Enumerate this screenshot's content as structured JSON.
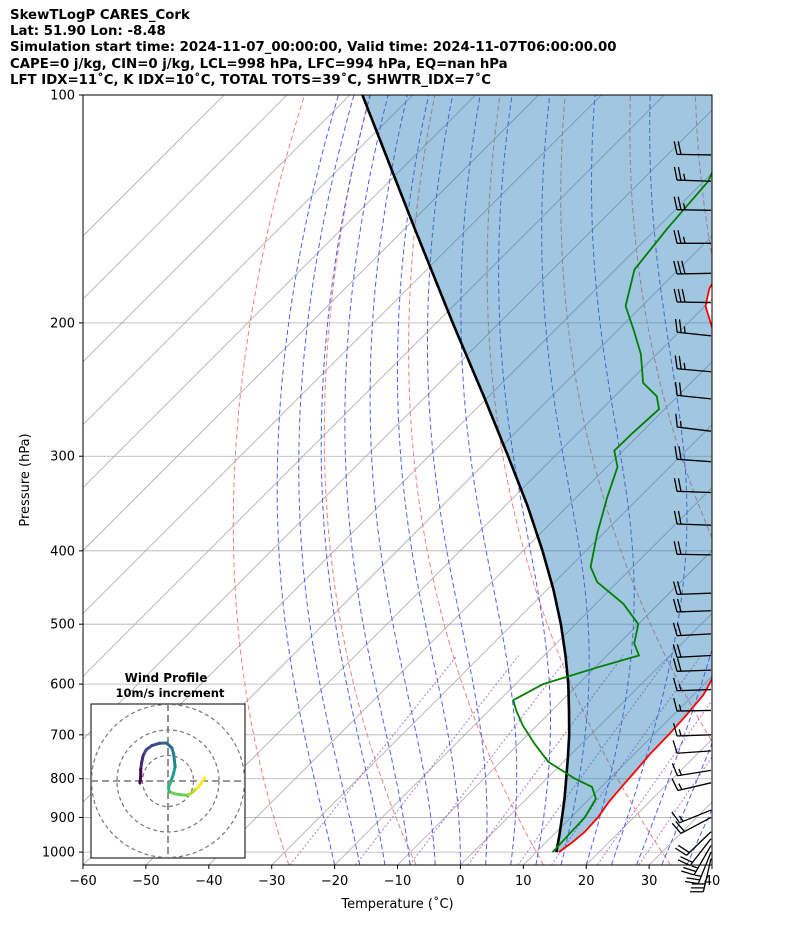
{
  "header": {
    "line1": "SkewTLogP CARES_Cork",
    "line2": "Lat: 51.90   Lon: -8.48",
    "line3": "Simulation start time: 2024-11-07_00:00:00, Valid time: 2024-11-07T06:00:00.00",
    "line4": "CAPE=0 j/kg, CIN=0 j/kg, LCL=998 hPa, LFC=994 hPa, EQ=nan hPa",
    "line5": "LFT IDX=11˚C, K IDX=10˚C, TOTAL TOTS=39˚C, SHWTR_IDX=7˚C"
  },
  "chart_data": {
    "type": "line",
    "xlabel": "Temperature (˚C)",
    "ylabel": "Pressure (hPa)",
    "xlim": [
      -60,
      40
    ],
    "ylim": [
      1040,
      100
    ],
    "y_scale": "log",
    "skew": true,
    "grid": true,
    "x_ticks": [
      "−60",
      "−50",
      "−40",
      "−30",
      "−20",
      "−10",
      "0",
      "10",
      "20",
      "30",
      "40"
    ],
    "x_tick_values": [
      -60,
      -50,
      -40,
      -30,
      -20,
      -10,
      0,
      10,
      20,
      30,
      40
    ],
    "y_ticks": [
      "100",
      "200",
      "300",
      "400",
      "500",
      "600",
      "700",
      "800",
      "900",
      "1000"
    ],
    "y_tick_values": [
      100,
      200,
      300,
      400,
      500,
      600,
      700,
      800,
      900,
      1000
    ],
    "series": [
      {
        "key": "temperature",
        "color": "#ff0000",
        "points": [
          [
            1000,
            13.6
          ],
          [
            970,
            14.2
          ],
          [
            940,
            14.5
          ],
          [
            900,
            14.3
          ],
          [
            860,
            13.6
          ],
          [
            820,
            13.2
          ],
          [
            780,
            12.9
          ],
          [
            740,
            12.5
          ],
          [
            700,
            12.4
          ],
          [
            660,
            12.1
          ],
          [
            620,
            11.6
          ],
          [
            590,
            10.4
          ],
          [
            560,
            7.8
          ],
          [
            530,
            5.3
          ],
          [
            500,
            2.6
          ],
          [
            460,
            -0.9
          ],
          [
            430,
            -3.8
          ],
          [
            400,
            -7.2
          ],
          [
            370,
            -11.4
          ],
          [
            340,
            -16.3
          ],
          [
            310,
            -21.6
          ],
          [
            280,
            -26.7
          ],
          [
            260,
            -30.6
          ],
          [
            240,
            -34.8
          ],
          [
            225,
            -38.4
          ],
          [
            210,
            -43.0
          ],
          [
            200,
            -46.4
          ],
          [
            190,
            -49.9
          ],
          [
            180,
            -52.1
          ],
          [
            170,
            -53.1
          ],
          [
            160,
            -52.9
          ],
          [
            150,
            -52.1
          ],
          [
            140,
            -51.7
          ],
          [
            130,
            -50.2
          ],
          [
            120,
            -47.7
          ],
          [
            110,
            -45.3
          ],
          [
            100,
            -42.7
          ]
        ]
      },
      {
        "key": "dewpoint",
        "color": "#008000",
        "points": [
          [
            1000,
            12.6
          ],
          [
            950,
            12.4
          ],
          [
            900,
            12.2
          ],
          [
            850,
            11.0
          ],
          [
            820,
            8.5
          ],
          [
            800,
            4.5
          ],
          [
            760,
            -2.4
          ],
          [
            720,
            -7.4
          ],
          [
            680,
            -12.3
          ],
          [
            650,
            -15.7
          ],
          [
            630,
            -17.8
          ],
          [
            600,
            -15.6
          ],
          [
            570,
            -9.6
          ],
          [
            550,
            -4.9
          ],
          [
            530,
            -7.6
          ],
          [
            500,
            -10.0
          ],
          [
            470,
            -15.6
          ],
          [
            440,
            -23.2
          ],
          [
            420,
            -26.7
          ],
          [
            380,
            -30.9
          ],
          [
            340,
            -35.1
          ],
          [
            310,
            -38.3
          ],
          [
            295,
            -41.4
          ],
          [
            280,
            -41.3
          ],
          [
            260,
            -40.9
          ],
          [
            250,
            -43.3
          ],
          [
            240,
            -47.6
          ],
          [
            220,
            -52.5
          ],
          [
            205,
            -57.3
          ],
          [
            190,
            -62.6
          ],
          [
            170,
            -67.0
          ],
          [
            150,
            -68.3
          ],
          [
            130,
            -69.3
          ],
          [
            115,
            -72.9
          ],
          [
            100,
            -76.4
          ]
        ]
      },
      {
        "key": "parcel",
        "color": "#000000",
        "points": [
          [
            1000,
            13.2
          ],
          [
            950,
            11.0
          ],
          [
            900,
            8.6
          ],
          [
            850,
            6.0
          ],
          [
            800,
            3.1
          ],
          [
            750,
            0.0
          ],
          [
            700,
            -3.4
          ],
          [
            650,
            -7.3
          ],
          [
            600,
            -11.6
          ],
          [
            550,
            -16.6
          ],
          [
            500,
            -22.3
          ],
          [
            450,
            -29.0
          ],
          [
            400,
            -36.9
          ],
          [
            350,
            -46.2
          ],
          [
            300,
            -57.4
          ],
          [
            250,
            -70.8
          ],
          [
            200,
            -87.4
          ],
          [
            150,
            -108.5
          ],
          [
            100,
            -138.0
          ]
        ]
      }
    ],
    "wind_barbs": [
      {
        "p": 1020,
        "speed": 28.9,
        "dir": 193
      },
      {
        "p": 1000,
        "speed": 26.8,
        "dir": 202
      },
      {
        "p": 980,
        "speed": 24.5,
        "dir": 210
      },
      {
        "p": 960,
        "speed": 21.8,
        "dir": 218
      },
      {
        "p": 940,
        "speed": 19.4,
        "dir": 226
      },
      {
        "p": 900,
        "speed": 18.2,
        "dir": 242
      },
      {
        "p": 880,
        "speed": 17.1,
        "dir": 248
      },
      {
        "p": 810,
        "speed": 13.7,
        "dir": 257
      },
      {
        "p": 780,
        "speed": 13.0,
        "dir": 261
      },
      {
        "p": 735,
        "speed": 12.1,
        "dir": 266
      },
      {
        "p": 700,
        "speed": 12.6,
        "dir": 268
      },
      {
        "p": 650,
        "speed": 14.4,
        "dir": 269
      },
      {
        "p": 610,
        "speed": 16.4,
        "dir": 268
      },
      {
        "p": 575,
        "speed": 17.5,
        "dir": 268
      },
      {
        "p": 550,
        "speed": 18.4,
        "dir": 267
      },
      {
        "p": 515,
        "speed": 19.2,
        "dir": 267
      },
      {
        "p": 480,
        "speed": 19.0,
        "dir": 268
      },
      {
        "p": 455,
        "speed": 18.4,
        "dir": 268
      },
      {
        "p": 405,
        "speed": 18.2,
        "dir": 271
      },
      {
        "p": 370,
        "speed": 19.3,
        "dir": 272
      },
      {
        "p": 335,
        "speed": 20.5,
        "dir": 272
      },
      {
        "p": 305,
        "speed": 19.5,
        "dir": 274
      },
      {
        "p": 278,
        "speed": 17.4,
        "dir": 277
      },
      {
        "p": 252,
        "speed": 21.6,
        "dir": 276
      },
      {
        "p": 232,
        "speed": 26.3,
        "dir": 275
      },
      {
        "p": 208,
        "speed": 26.0,
        "dir": 276
      },
      {
        "p": 188,
        "speed": 27.6,
        "dir": 271
      },
      {
        "p": 172,
        "speed": 28.4,
        "dir": 269
      },
      {
        "p": 157,
        "speed": 25.4,
        "dir": 270
      },
      {
        "p": 142,
        "speed": 23.9,
        "dir": 271
      },
      {
        "p": 130,
        "speed": 23.6,
        "dir": 272
      },
      {
        "p": 120,
        "speed": 21.2,
        "dir": 271
      }
    ],
    "hodograph": {
      "title": "Wind Profile",
      "subtitle": "10m/s increment",
      "rings": [
        10,
        20,
        30
      ],
      "uv": [
        [
          14.4,
          1.2
        ],
        [
          13.2,
          -0.6
        ],
        [
          12.1,
          -2.1
        ],
        [
          10.6,
          -3.5
        ],
        [
          9.0,
          -4.9
        ],
        [
          7.3,
          -5.6
        ],
        [
          5.0,
          -5.4
        ],
        [
          2.6,
          -5.0
        ],
        [
          0.5,
          -4.3
        ],
        [
          0.2,
          -2.6
        ],
        [
          1.4,
          0.5
        ],
        [
          2.2,
          3.0
        ],
        [
          2.8,
          5.6
        ],
        [
          2.5,
          8.2
        ],
        [
          2.2,
          10.7
        ],
        [
          1.5,
          13.0
        ],
        [
          -0.6,
          14.9
        ],
        [
          -3.4,
          14.8
        ],
        [
          -6.3,
          13.9
        ],
        [
          -8.5,
          12.3
        ],
        [
          -9.7,
          10.1
        ],
        [
          -10.3,
          7.4
        ],
        [
          -10.7,
          4.6
        ],
        [
          -10.7,
          1.8
        ],
        [
          -11.0,
          -0.8
        ]
      ]
    }
  }
}
